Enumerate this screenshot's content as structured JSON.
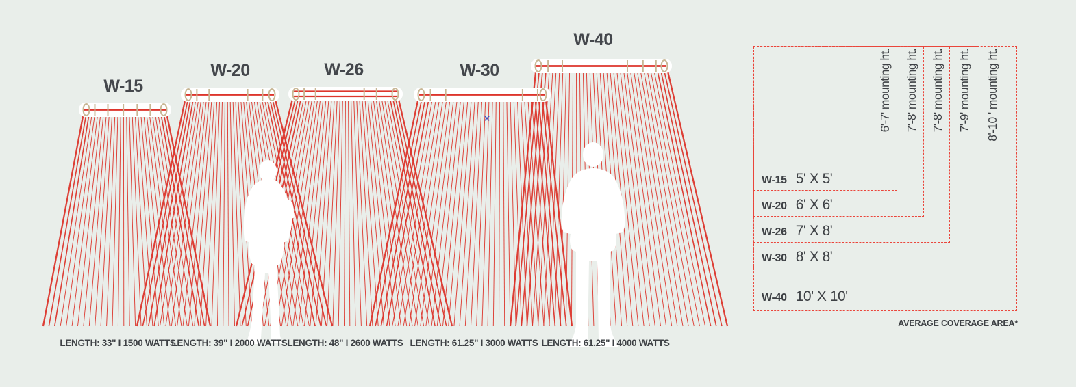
{
  "colors": {
    "background": "#e9eeea",
    "beam_red": "#dd352c",
    "dashed_red": "#ea453b",
    "bracket_tan": "#c8b795",
    "text_dark": "#3e4145",
    "silhouette_white": "#ffffff",
    "cursor_blue": "#3b4fc4"
  },
  "heaters": [
    {
      "model": "W-15",
      "caption": "LENGTH: 33\" I 1500 WATTS",
      "coverage": "5' X 5'",
      "mounting": "6'-7' mounting ht."
    },
    {
      "model": "W-20",
      "caption": "LENGTH: 39\" I 2000 WATTS",
      "coverage": "6' X 6'",
      "mounting": "7'-8' mounting ht."
    },
    {
      "model": "W-26",
      "caption": "LENGTH: 48\" I 2600 WATTS",
      "coverage": "7' X 8'",
      "mounting": "7'-8' mounting ht."
    },
    {
      "model": "W-30",
      "caption": "LENGTH: 61.25\" I 3000 WATTS",
      "coverage": "8' X 8'",
      "mounting": "7'-9' mounting ht."
    },
    {
      "model": "W-40",
      "caption": "LENGTH: 61.25\" I 4000 WATTS",
      "coverage": "10' X 10'",
      "mounting": "8'-10 ' mounting ht."
    }
  ],
  "table": {
    "footnote": "AVERAGE COVERAGE AREA*"
  }
}
